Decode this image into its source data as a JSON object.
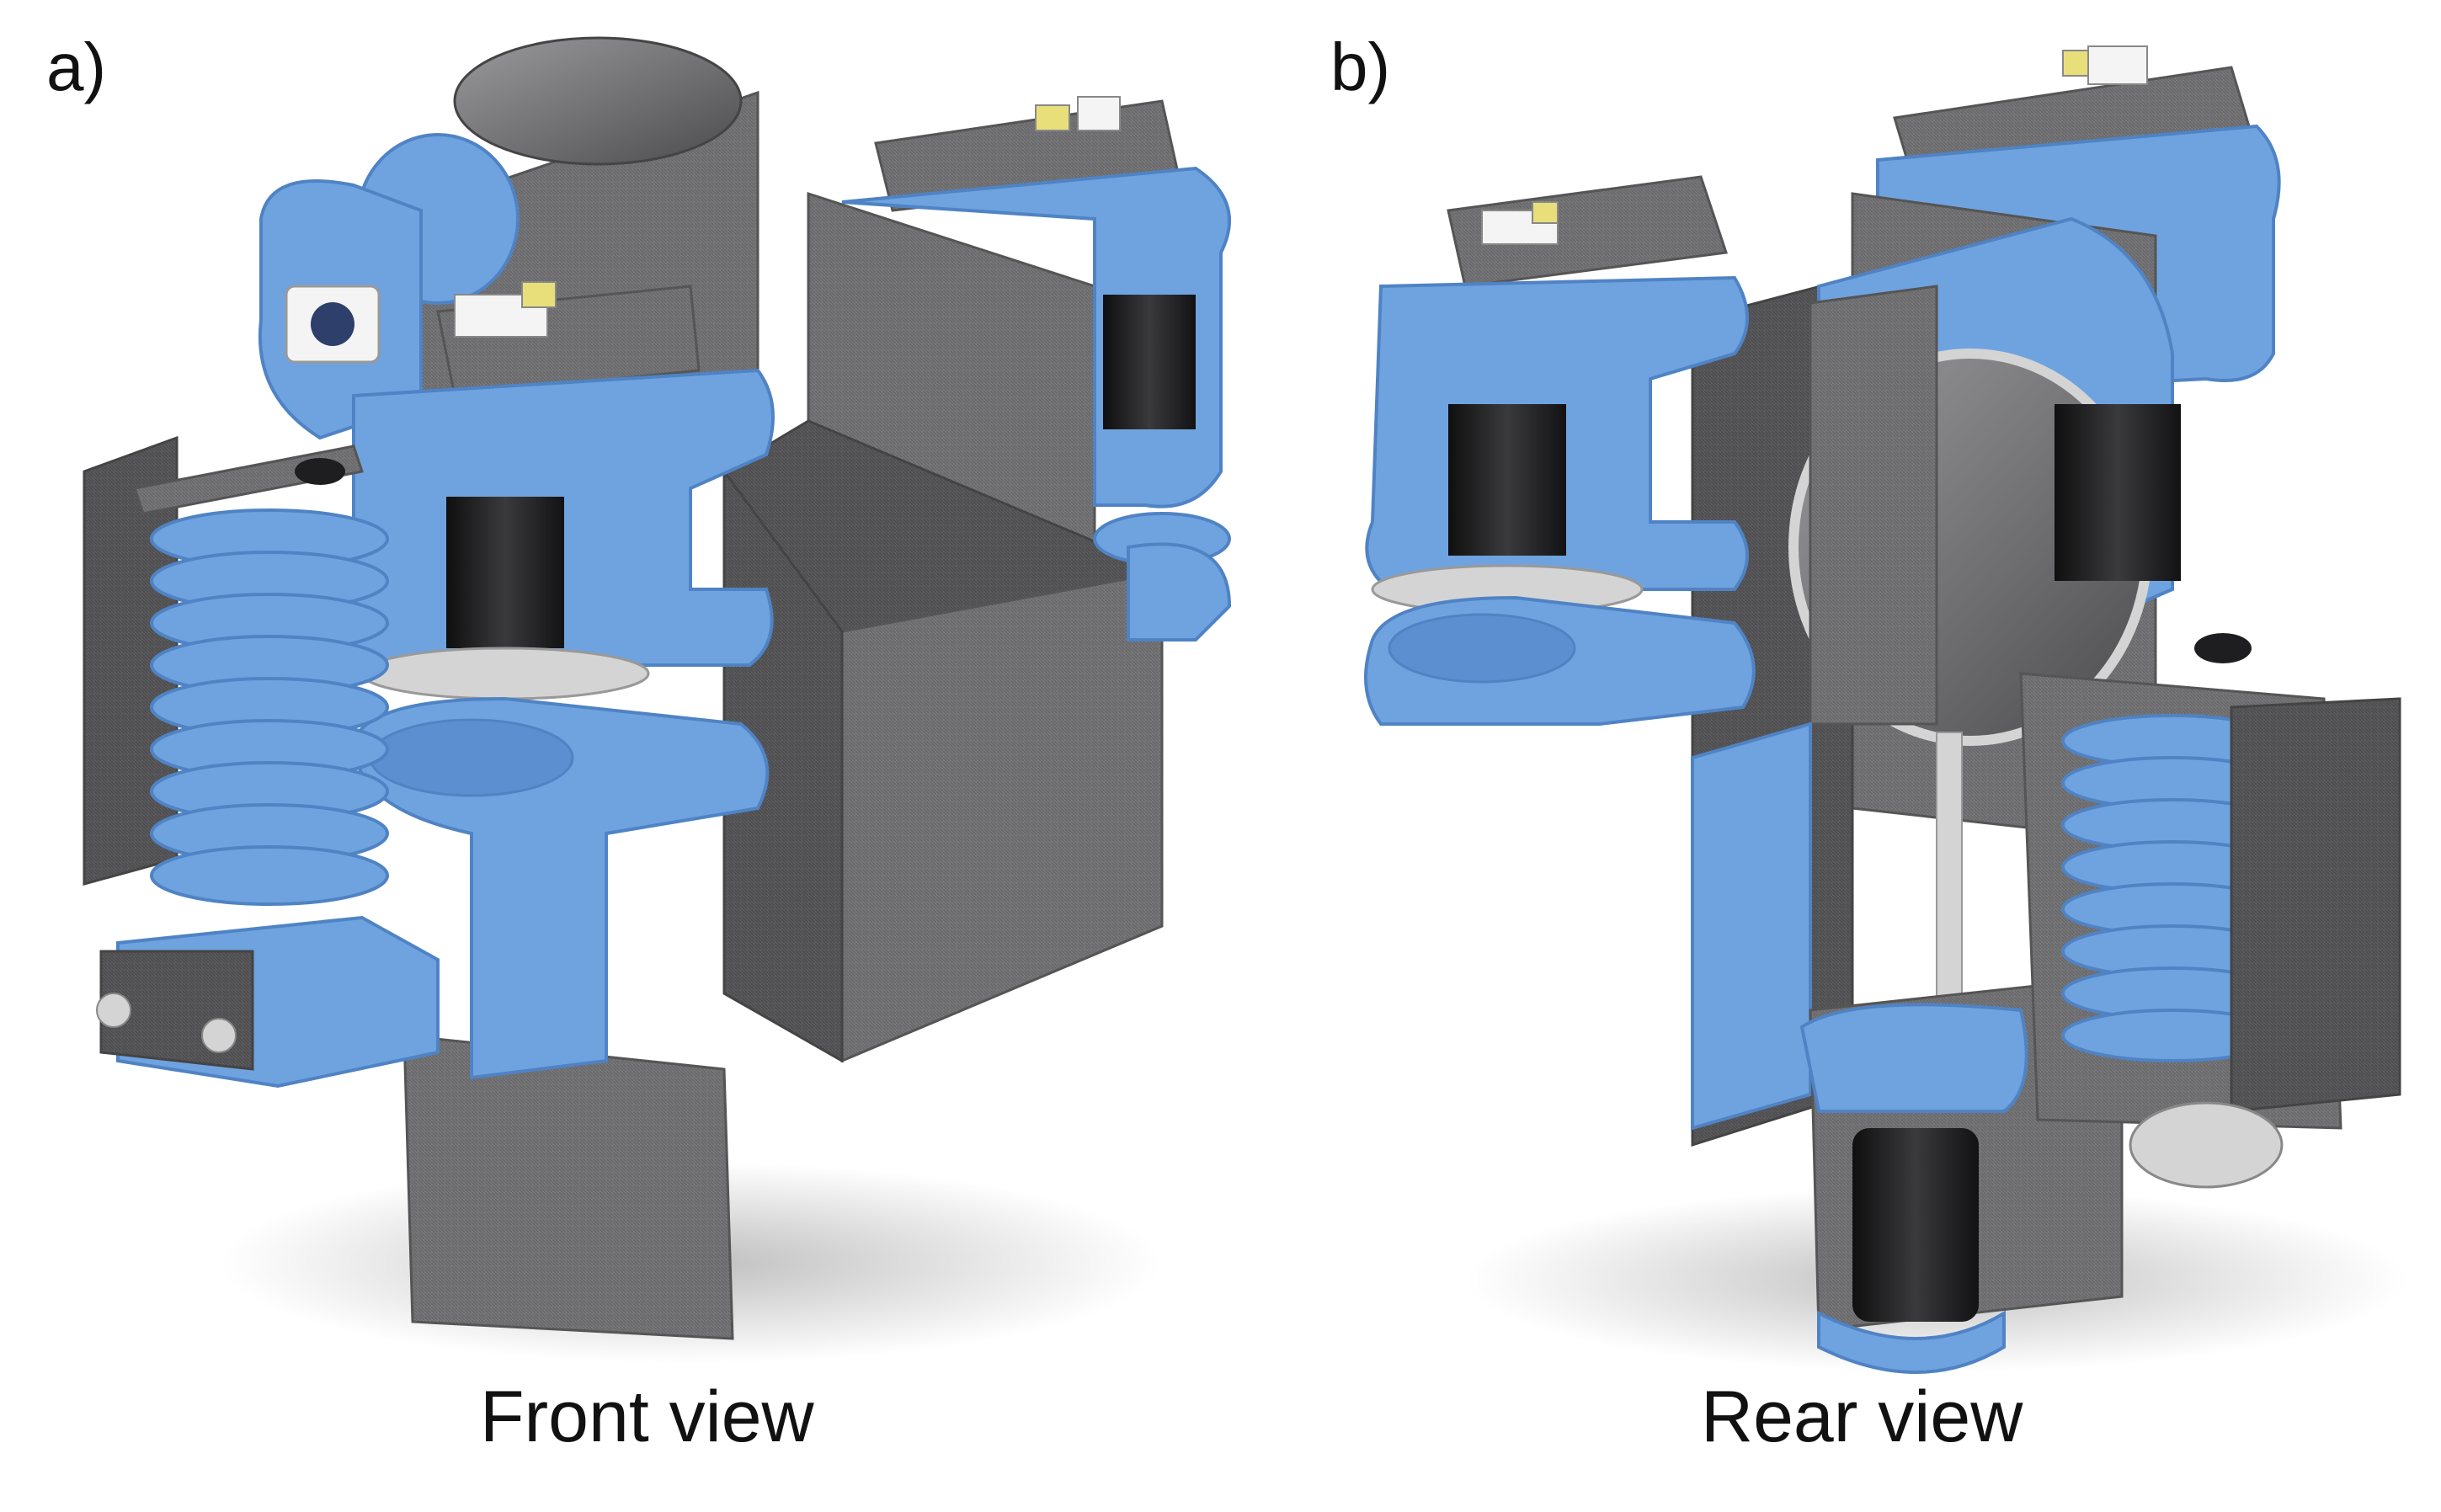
{
  "panels": [
    {
      "letter": "a)",
      "caption": "Front view"
    },
    {
      "letter": "b)",
      "caption": "Rear view"
    }
  ],
  "colors": {
    "blue": "#6fa3e0",
    "blue_dark": "#4f83c4",
    "blue_light": "#9cc2ef",
    "carbon": "#7a7a7c",
    "carbon_dark": "#5c5c5e",
    "carbon_light": "#9a9a9c",
    "black_motor": "#1e1e20",
    "silver": "#d4d4d4",
    "white": "#f4f4f4",
    "yellow": "#e8df7a"
  },
  "icons": [
    "carbon-fiber-texture",
    "blue-bracket",
    "black-motor-cylinder",
    "white-sensor"
  ]
}
